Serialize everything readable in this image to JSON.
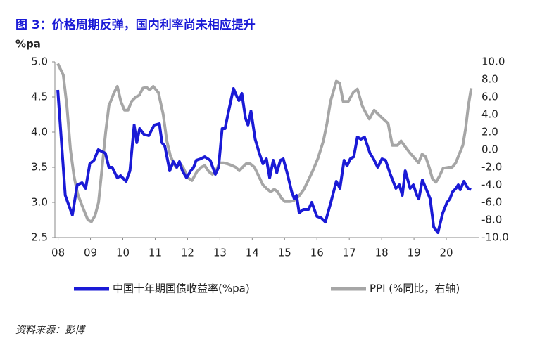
{
  "chart_data": {
    "type": "line",
    "title": "图 3：价格周期反弹，国内利率尚未相应提升",
    "y_label": "%pa",
    "source": "资料来源：彭博",
    "xlim": [
      2007.9,
      2021.0
    ],
    "xticks": [
      {
        "value": 2008,
        "label": "08"
      },
      {
        "value": 2009,
        "label": "09"
      },
      {
        "value": 2010,
        "label": "10"
      },
      {
        "value": 2011,
        "label": "11"
      },
      {
        "value": 2012,
        "label": "12"
      },
      {
        "value": 2013,
        "label": "13"
      },
      {
        "value": 2014,
        "label": "14"
      },
      {
        "value": 2015,
        "label": "15"
      },
      {
        "value": 2016,
        "label": "16"
      },
      {
        "value": 2017,
        "label": "17"
      },
      {
        "value": 2018,
        "label": "18"
      },
      {
        "value": 2019,
        "label": "19"
      },
      {
        "value": 2020,
        "label": "20"
      }
    ],
    "ylim": [
      2.5,
      5.0
    ],
    "yticks": [
      {
        "value": 2.5,
        "label": "2.5"
      },
      {
        "value": 3,
        "label": "3.0"
      },
      {
        "value": 3.5,
        "label": "3.5"
      },
      {
        "value": 4,
        "label": "4.0"
      },
      {
        "value": 4.5,
        "label": "4.5"
      },
      {
        "value": 5,
        "label": "5.0"
      }
    ],
    "y2lim": [
      -10,
      10
    ],
    "y2ticks": [
      {
        "value": 10,
        "label": "10.0"
      },
      {
        "value": 8,
        "label": "8.0"
      },
      {
        "value": 6,
        "label": "6.0"
      },
      {
        "value": 4,
        "label": "4.0"
      },
      {
        "value": 2,
        "label": "2.0"
      },
      {
        "value": 0,
        "label": "0.0"
      },
      {
        "value": -2,
        "label": "-2.0"
      },
      {
        "value": -4,
        "label": "-4.0"
      },
      {
        "value": -6,
        "label": "-6.0"
      },
      {
        "value": -8,
        "label": "-8.0"
      },
      {
        "value": -10,
        "label": "-10.0"
      }
    ],
    "series": [
      {
        "name": "中国十年期国债收益率(%pa)",
        "color": "#1a1ad6",
        "axis": "y",
        "x": [
          2007.99,
          2008.22,
          2008.44,
          2008.59,
          2008.74,
          2008.85,
          2008.98,
          2009.11,
          2009.24,
          2009.46,
          2009.57,
          2009.67,
          2009.83,
          2009.93,
          2010.1,
          2010.22,
          2010.35,
          2010.43,
          2010.52,
          2010.65,
          2010.8,
          2010.97,
          2011.13,
          2011.21,
          2011.3,
          2011.45,
          2011.56,
          2011.67,
          2011.75,
          2011.84,
          2011.97,
          2012.1,
          2012.19,
          2012.27,
          2012.4,
          2012.53,
          2012.7,
          2012.86,
          2012.96,
          2013.07,
          2013.16,
          2013.27,
          2013.42,
          2013.53,
          2013.59,
          2013.68,
          2013.79,
          2013.87,
          2013.96,
          2014.09,
          2014.22,
          2014.33,
          2014.44,
          2014.54,
          2014.65,
          2014.76,
          2014.87,
          2014.96,
          2015.09,
          2015.22,
          2015.3,
          2015.37,
          2015.45,
          2015.58,
          2015.74,
          2015.84,
          2016.0,
          2016.13,
          2016.26,
          2016.43,
          2016.6,
          2016.71,
          2016.84,
          2016.93,
          2017.03,
          2017.14,
          2017.25,
          2017.36,
          2017.47,
          2017.64,
          2017.75,
          2017.88,
          2018.01,
          2018.12,
          2018.27,
          2018.44,
          2018.55,
          2018.64,
          2018.73,
          2018.88,
          2018.98,
          2019.09,
          2019.15,
          2019.26,
          2019.37,
          2019.5,
          2019.61,
          2019.74,
          2019.89,
          2020.02,
          2020.11,
          2020.19,
          2020.3,
          2020.37,
          2020.43,
          2020.54,
          2020.67,
          2020.76
        ],
        "values": [
          4.6,
          3.1,
          2.82,
          3.25,
          3.28,
          3.2,
          3.55,
          3.6,
          3.75,
          3.7,
          3.5,
          3.5,
          3.35,
          3.38,
          3.3,
          3.45,
          4.1,
          3.85,
          4.05,
          3.97,
          3.95,
          4.1,
          4.12,
          3.85,
          3.8,
          3.45,
          3.58,
          3.5,
          3.58,
          3.45,
          3.35,
          3.45,
          3.5,
          3.6,
          3.62,
          3.65,
          3.6,
          3.4,
          3.5,
          4.05,
          4.05,
          4.3,
          4.62,
          4.5,
          4.45,
          4.55,
          4.2,
          4.1,
          4.3,
          3.9,
          3.7,
          3.55,
          3.62,
          3.35,
          3.6,
          3.42,
          3.6,
          3.62,
          3.4,
          3.15,
          3.05,
          3.1,
          2.85,
          2.9,
          2.9,
          3.0,
          2.8,
          2.78,
          2.72,
          3.0,
          3.3,
          3.2,
          3.6,
          3.52,
          3.62,
          3.65,
          3.93,
          3.9,
          3.93,
          3.7,
          3.62,
          3.5,
          3.62,
          3.6,
          3.4,
          3.2,
          3.25,
          3.1,
          3.45,
          3.2,
          3.25,
          3.1,
          3.05,
          3.32,
          3.2,
          3.05,
          2.65,
          2.57,
          2.85,
          3.0,
          3.05,
          3.15,
          3.2,
          3.25,
          3.18,
          3.3,
          3.2,
          3.18
        ]
      },
      {
        "name": "PPI (%同比，右轴)",
        "color": "#a6a6a6",
        "axis": "y2",
        "x": [
          2007.99,
          2008.16,
          2008.27,
          2008.38,
          2008.49,
          2008.6,
          2008.7,
          2008.81,
          2008.92,
          2009.03,
          2009.14,
          2009.25,
          2009.36,
          2009.47,
          2009.57,
          2009.73,
          2009.83,
          2009.94,
          2010.05,
          2010.16,
          2010.27,
          2010.4,
          2010.51,
          2010.62,
          2010.73,
          2010.83,
          2010.94,
          2011.1,
          2011.25,
          2011.36,
          2011.47,
          2011.57,
          2011.64,
          2011.75,
          2011.86,
          2012.01,
          2012.14,
          2012.29,
          2012.42,
          2012.53,
          2012.66,
          2012.77,
          2012.88,
          2012.99,
          2013.12,
          2013.23,
          2013.38,
          2013.49,
          2013.6,
          2013.7,
          2013.81,
          2013.94,
          2014.07,
          2014.2,
          2014.33,
          2014.47,
          2014.57,
          2014.68,
          2014.79,
          2014.9,
          2015.01,
          2015.16,
          2015.29,
          2015.44,
          2015.6,
          2015.73,
          2015.86,
          2016.03,
          2016.2,
          2016.31,
          2016.42,
          2016.6,
          2016.7,
          2016.81,
          2016.97,
          2017.12,
          2017.25,
          2017.4,
          2017.51,
          2017.62,
          2017.77,
          2017.88,
          2018.05,
          2018.2,
          2018.33,
          2018.49,
          2018.6,
          2018.7,
          2018.86,
          2019.03,
          2019.14,
          2019.25,
          2019.36,
          2019.47,
          2019.57,
          2019.68,
          2019.79,
          2019.9,
          2020.07,
          2020.18,
          2020.29,
          2020.4,
          2020.51,
          2020.6,
          2020.68,
          2020.77
        ],
        "values": [
          9.8,
          8.5,
          5,
          0,
          -3,
          -5,
          -6,
          -7,
          -8,
          -8.2,
          -7.5,
          -6,
          -2,
          2,
          5,
          6.5,
          7.2,
          5.5,
          4.5,
          4.5,
          5.5,
          6,
          6.2,
          7,
          7.1,
          6.8,
          7.2,
          6.5,
          4,
          1,
          -0.7,
          -1.5,
          -2,
          -1.5,
          -2,
          -3.2,
          -3.5,
          -2.5,
          -2,
          -1.8,
          -2.5,
          -2.8,
          -2.4,
          -1.5,
          -1.5,
          -1.6,
          -1.8,
          -2,
          -2.4,
          -2,
          -1.6,
          -1.6,
          -2,
          -3,
          -4,
          -4.5,
          -4.8,
          -4.5,
          -4.8,
          -5.5,
          -5.9,
          -5.9,
          -5.8,
          -5.3,
          -4.5,
          -3.5,
          -2.5,
          -1,
          1,
          3,
          5.5,
          7.8,
          7.6,
          5.5,
          5.5,
          6.5,
          6.9,
          5,
          4.2,
          3.5,
          4.5,
          4.1,
          3.5,
          3,
          0.5,
          0.5,
          1,
          0.5,
          -0.3,
          -1,
          -1.5,
          -0.5,
          -0.8,
          -2,
          -3.3,
          -3.7,
          -3,
          -2.1,
          -2,
          -2,
          -1.5,
          -0.5,
          0.5,
          2.5,
          5,
          7
        ]
      }
    ]
  }
}
